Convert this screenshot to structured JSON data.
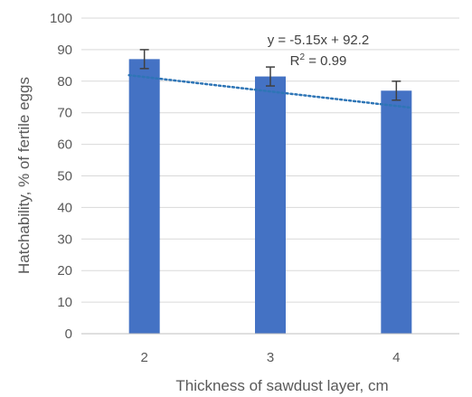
{
  "chart_data": {
    "type": "bar",
    "categories": [
      "2",
      "3",
      "4"
    ],
    "values": [
      87,
      81.5,
      77
    ],
    "error": [
      3,
      3,
      3
    ],
    "xlabel": "Thickness of sawdust layer, cm",
    "ylabel": "Hatchability, % of fertile eggs",
    "ylim": [
      0,
      100
    ],
    "yticks": [
      0,
      10,
      20,
      30,
      40,
      50,
      60,
      70,
      80,
      90,
      100
    ],
    "grid": true,
    "bar_color": "#4472c4",
    "trendline": {
      "type": "linear",
      "slope": -5.15,
      "intercept": 92.2,
      "color": "#2e75b6",
      "style": "dotted",
      "equation": "y = -5.15x + 92.2",
      "r2_prefix": "R",
      "r2_sup": "2",
      "r2_suffix": " = 0.99"
    }
  }
}
